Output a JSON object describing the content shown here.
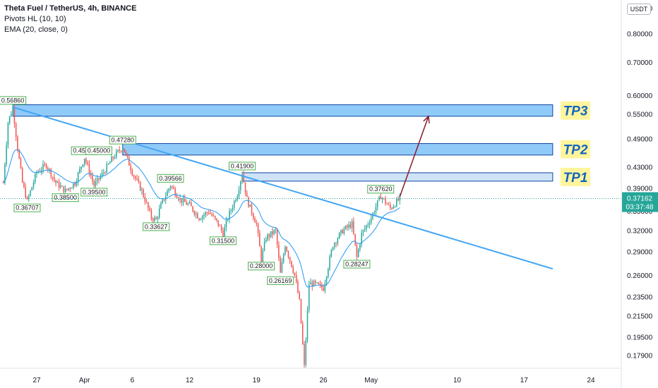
{
  "legend": {
    "title": "Theta Fuel / TetherUS, 4h, BINANCE",
    "indicator1": "Pivots HL (10, 10)",
    "indicator2": "EMA (20, close, 0)"
  },
  "currency": "USDT",
  "current_price": {
    "value": "0.37162",
    "countdown": "03:37:48",
    "color": "#26a69a"
  },
  "colors": {
    "trendline": "#42a5f5",
    "ema": "#2196f3",
    "up": "#26a69a",
    "down": "#ef5350",
    "arrow": "#8b1a2b",
    "tp_bg": "#fff59d",
    "tp_text": "#1565c0",
    "zone_fill": "#90caf9",
    "zone_border": "#0d47a1"
  },
  "chart_data": {
    "type": "candlestick",
    "title": "Theta Fuel / TetherUS, 4h, BINANCE",
    "yscale": "log",
    "ylim": [
      0.165,
      0.92
    ],
    "y_ticks": [
      "0.90000",
      "0.80000",
      "0.70000",
      "0.60000",
      "0.55000",
      "0.49000",
      "0.43000",
      "0.39000",
      "0.35000",
      "0.32000",
      "0.29000",
      "0.26000",
      "0.23500",
      "0.21500",
      "0.19500",
      "0.17900"
    ],
    "x_ticks": [
      "27",
      "Apr",
      "6",
      "12",
      "19",
      "26",
      "May",
      "10",
      "17",
      "24"
    ],
    "price_anchors": [
      {
        "x": "Mar 23 12:00",
        "y": 0.4
      },
      {
        "x": "Mar 24",
        "y": 0.53
      },
      {
        "x": "Mar 24 12:00",
        "y": 0.5686
      },
      {
        "x": "Mar 25",
        "y": 0.47
      },
      {
        "x": "Mar 25 12:00",
        "y": 0.4
      },
      {
        "x": "Mar 26",
        "y": 0.3671
      },
      {
        "x": "Mar 27",
        "y": 0.42
      },
      {
        "x": "Mar 28",
        "y": 0.435
      },
      {
        "x": "Mar 29",
        "y": 0.4
      },
      {
        "x": "Mar 30",
        "y": 0.385
      },
      {
        "x": "Mar 31",
        "y": 0.4
      },
      {
        "x": "Apr 1",
        "y": 0.45
      },
      {
        "x": "Apr 2",
        "y": 0.395
      },
      {
        "x": "Apr 3",
        "y": 0.42
      },
      {
        "x": "Apr 4",
        "y": 0.45
      },
      {
        "x": "Apr 5",
        "y": 0.4728
      },
      {
        "x": "Apr 6",
        "y": 0.42
      },
      {
        "x": "Apr 7",
        "y": 0.385
      },
      {
        "x": "Apr 8",
        "y": 0.34
      },
      {
        "x": "Apr 8 12:00",
        "y": 0.3363
      },
      {
        "x": "Apr 9",
        "y": 0.36
      },
      {
        "x": "Apr 10",
        "y": 0.3957
      },
      {
        "x": "Apr 11",
        "y": 0.37
      },
      {
        "x": "Apr 12",
        "y": 0.36
      },
      {
        "x": "Apr 13",
        "y": 0.34
      },
      {
        "x": "Apr 14",
        "y": 0.35
      },
      {
        "x": "Apr 15",
        "y": 0.33
      },
      {
        "x": "Apr 15 12:00",
        "y": 0.315
      },
      {
        "x": "Apr 16",
        "y": 0.34
      },
      {
        "x": "Apr 17",
        "y": 0.38
      },
      {
        "x": "Apr 17 12:00",
        "y": 0.419
      },
      {
        "x": "Apr 18",
        "y": 0.37
      },
      {
        "x": "Apr 19",
        "y": 0.33
      },
      {
        "x": "Apr 19 12:00",
        "y": 0.28
      },
      {
        "x": "Apr 20",
        "y": 0.31
      },
      {
        "x": "Apr 21",
        "y": 0.32
      },
      {
        "x": "Apr 21 12:00",
        "y": 0.2617
      },
      {
        "x": "Apr 22",
        "y": 0.3
      },
      {
        "x": "Apr 23",
        "y": 0.26
      },
      {
        "x": "Apr 23 12:00",
        "y": 0.23
      },
      {
        "x": "Apr 24",
        "y": 0.17
      },
      {
        "x": "Apr 24 12:00",
        "y": 0.25
      },
      {
        "x": "Apr 25",
        "y": 0.25
      },
      {
        "x": "Apr 26",
        "y": 0.245
      },
      {
        "x": "Apr 27",
        "y": 0.3
      },
      {
        "x": "Apr 28",
        "y": 0.32
      },
      {
        "x": "Apr 29",
        "y": 0.33
      },
      {
        "x": "Apr 29 12:00",
        "y": 0.2825
      },
      {
        "x": "Apr 30",
        "y": 0.315
      },
      {
        "x": "May 1",
        "y": 0.34
      },
      {
        "x": "May 2",
        "y": 0.3762
      },
      {
        "x": "May 3",
        "y": 0.355
      },
      {
        "x": "May 4",
        "y": 0.3716
      }
    ],
    "pivot_labels": [
      {
        "text": "0.56860",
        "x": "Mar 24 12:00",
        "y": 0.5686,
        "pos": "above"
      },
      {
        "text": "0.45000",
        "x": "Apr 1",
        "y": 0.45,
        "pos": "above"
      },
      {
        "text": "0.45000",
        "x": "Apr 2 12:00",
        "y": 0.45,
        "pos": "above"
      },
      {
        "text": "0.47280",
        "x": "Apr 5",
        "y": 0.4728,
        "pos": "above"
      },
      {
        "text": "0.41900",
        "x": "Apr 17 12:00",
        "y": 0.419,
        "pos": "above"
      },
      {
        "text": "0.37620",
        "x": "May 2",
        "y": 0.3762,
        "pos": "above"
      },
      {
        "text": "0.36707",
        "x": "Mar 26",
        "y": 0.3671,
        "pos": "below"
      },
      {
        "text": "0.38500",
        "x": "Mar 30",
        "y": 0.385,
        "pos": "below"
      },
      {
        "text": "0.39500",
        "x": "Apr 2",
        "y": 0.395,
        "pos": "below"
      },
      {
        "text": "0.39566",
        "x": "Apr 10",
        "y": 0.3957,
        "pos": "above"
      },
      {
        "text": "0.33627",
        "x": "Apr 8 12:00",
        "y": 0.3363,
        "pos": "below"
      },
      {
        "text": "0.31500",
        "x": "Apr 15 12:00",
        "y": 0.315,
        "pos": "below"
      },
      {
        "text": "0.28000",
        "x": "Apr 19 12:00",
        "y": 0.28,
        "pos": "below"
      },
      {
        "text": "0.26169",
        "x": "Apr 21 12:00",
        "y": 0.2617,
        "pos": "below"
      },
      {
        "text": "0.28247",
        "x": "Apr 29 12:00",
        "y": 0.2825,
        "pos": "below"
      }
    ],
    "zones": [
      {
        "label": "TP3",
        "start": "Mar 24 12:00",
        "end": "May 20",
        "y_top": 0.575,
        "y_bottom": 0.545
      },
      {
        "label": "TP2",
        "start": "Apr 5",
        "end": "May 20",
        "y_top": 0.48,
        "y_bottom": 0.455
      },
      {
        "label": "TP1",
        "start": "Apr 17 12:00",
        "end": "May 20",
        "y_top": 0.419,
        "y_bottom": 0.403
      }
    ],
    "trendline": {
      "start": {
        "x": "Mar 24 12:00",
        "y": 0.5686
      },
      "end": {
        "x": "May 20",
        "y": 0.268
      }
    },
    "arrow": {
      "start": {
        "x": "May 4",
        "y": 0.375
      },
      "end": {
        "x": "May 7",
        "y": 0.545
      }
    }
  }
}
